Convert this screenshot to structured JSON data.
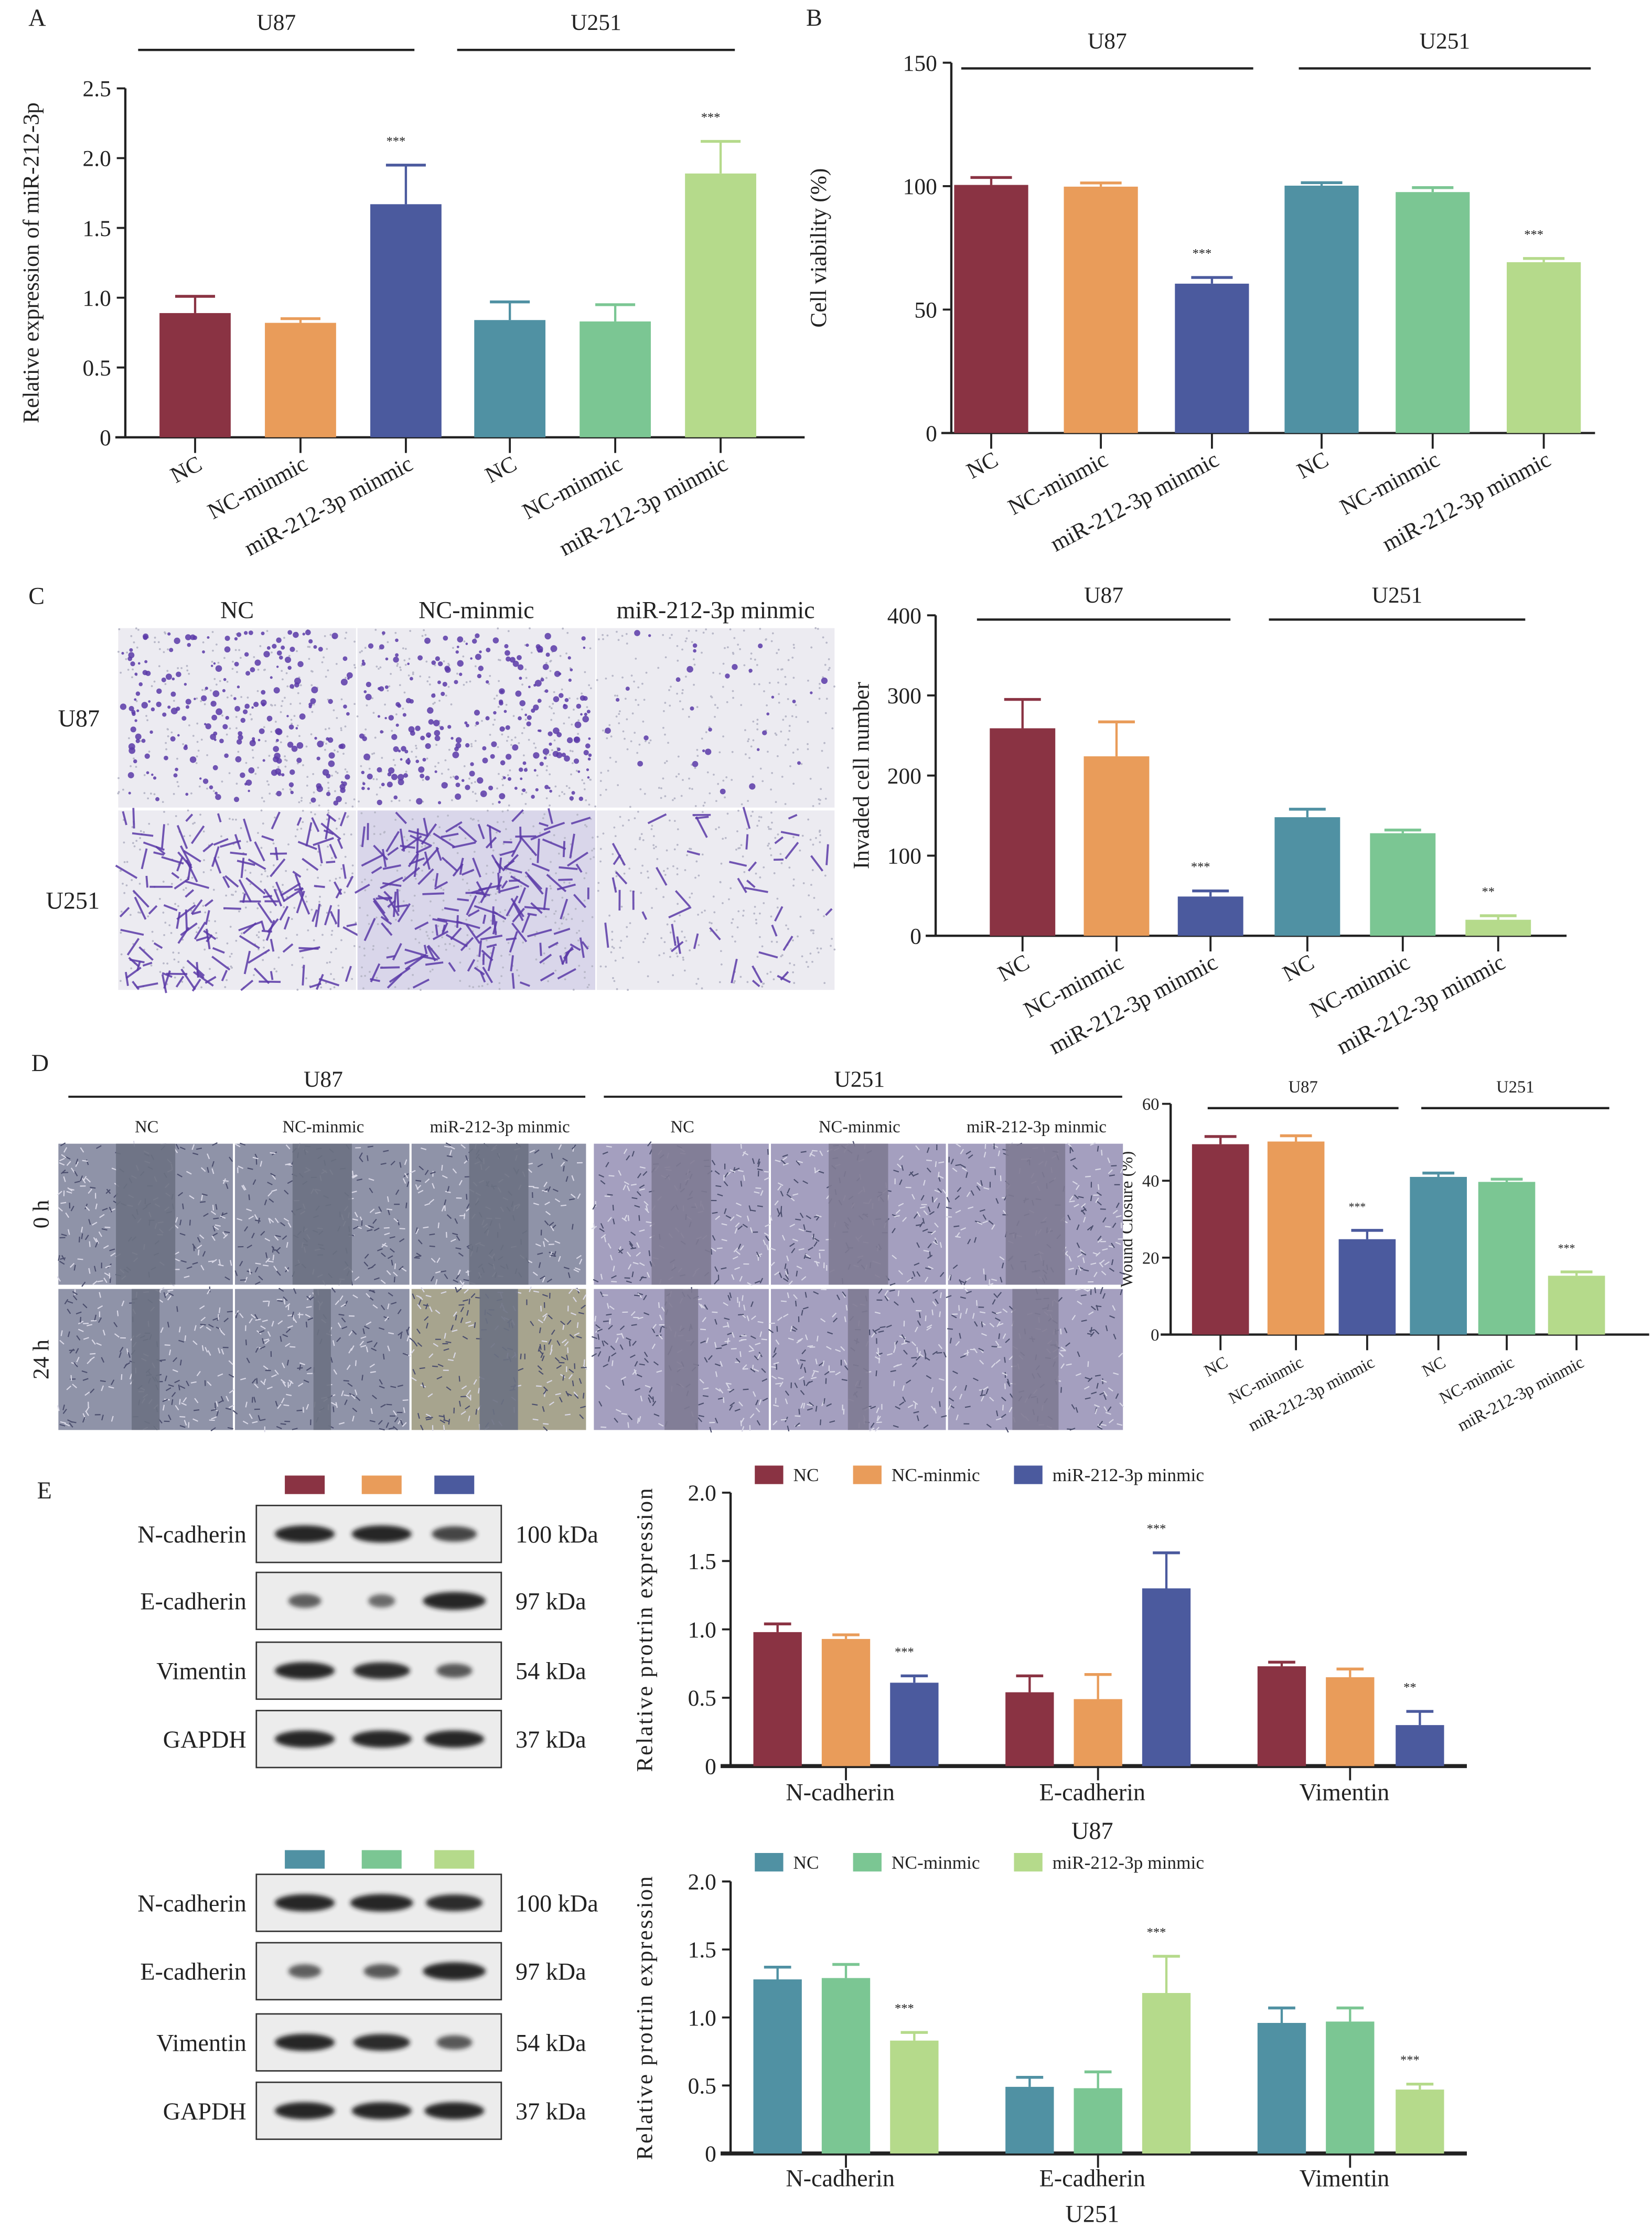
{
  "panel_letters": {
    "a": "A",
    "b": "B",
    "c": "C",
    "d": "D",
    "e": "E"
  },
  "palette": {
    "u87": [
      "#8a3343",
      "#e99c5a",
      "#4b5a9e"
    ],
    "u251": [
      "#5091a3",
      "#7bc693",
      "#b5da8b"
    ]
  },
  "panel_c_images": {
    "columns": [
      "NC",
      "NC-minmic",
      "miR-212-3p minmic"
    ],
    "rows": [
      "U87",
      "U251"
    ]
  },
  "panel_d_images": {
    "groups": [
      "U87",
      "U251"
    ],
    "columns": [
      "NC",
      "NC-minmic",
      "miR-212-3p minmic"
    ],
    "rows": [
      "0 h",
      "24 h"
    ]
  },
  "panel_e_blots": {
    "u87": {
      "markers": [
        {
          "name": "N-cadherin",
          "kda": "100 kDa"
        },
        {
          "name": "E-cadherin",
          "kda": "97 kDa"
        },
        {
          "name": "Vimentin",
          "kda": "54 kDa"
        },
        {
          "name": "GAPDH",
          "kda": "37 kDa"
        }
      ]
    },
    "u251": {
      "markers": [
        {
          "name": "N-cadherin",
          "kda": "100 kDa"
        },
        {
          "name": "E-cadherin",
          "kda": "97 kDa"
        },
        {
          "name": "Vimentin",
          "kda": "54 kDa"
        },
        {
          "name": "GAPDH",
          "kda": "37 kDa"
        }
      ]
    }
  },
  "chart_data": [
    {
      "id": "A",
      "type": "bar",
      "title": "",
      "ylabel": "Relative expression of miR-212-3p",
      "ylim": [
        0,
        2.5
      ],
      "yticks": [
        0,
        0.5,
        1.0,
        1.5,
        2.0,
        2.5
      ],
      "ytick_labels": [
        "0",
        "0.5",
        "1.0",
        "1.5",
        "2.0",
        "2.5"
      ],
      "groups": [
        "U87",
        "U251"
      ],
      "categories": [
        "NC",
        "NC-minmic",
        "miR-212-3p minmic",
        "NC",
        "NC-minmic",
        "miR-212-3p minmic"
      ],
      "values": [
        0.89,
        0.82,
        1.67,
        0.84,
        0.83,
        1.89
      ],
      "errors": [
        0.12,
        0.03,
        0.28,
        0.13,
        0.12,
        0.23
      ],
      "significance": [
        "",
        "",
        "***",
        "",
        "",
        "***"
      ]
    },
    {
      "id": "B",
      "type": "bar",
      "title": "",
      "ylabel": "Cell viability (%)",
      "ylim": [
        0,
        150
      ],
      "yticks": [
        0,
        50,
        100,
        150
      ],
      "ytick_labels": [
        "0",
        "50",
        "100",
        "150"
      ],
      "groups": [
        "U87",
        "U251"
      ],
      "categories": [
        "NC",
        "NC-minmic",
        "miR-212-3p minmic",
        "NC",
        "NC-minmic",
        "miR-212-3p minmic"
      ],
      "values": [
        100.5,
        99.8,
        60.5,
        100.2,
        97.6,
        69.2
      ],
      "errors": [
        3.0,
        1.5,
        2.5,
        1.2,
        1.8,
        1.5
      ],
      "significance": [
        "",
        "",
        "***",
        "",
        "",
        "***"
      ]
    },
    {
      "id": "C",
      "type": "bar",
      "title": "",
      "ylabel": "Invaded cell number",
      "ylim": [
        0,
        400
      ],
      "yticks": [
        0,
        100,
        200,
        300,
        400
      ],
      "ytick_labels": [
        "0",
        "100",
        "200",
        "300",
        "400"
      ],
      "groups": [
        "U87",
        "U251"
      ],
      "categories": [
        "NC",
        "NC-minmic",
        "miR-212-3p minmic",
        "NC",
        "NC-minmic",
        "miR-212-3p minmic"
      ],
      "values": [
        259,
        224,
        49,
        148,
        128,
        20
      ],
      "errors": [
        36,
        43,
        7,
        10,
        4,
        5
      ],
      "significance": [
        "",
        "",
        "***",
        "",
        "",
        "**"
      ]
    },
    {
      "id": "D",
      "type": "bar",
      "title": "",
      "ylabel": "Wound Closure (%)",
      "ylim": [
        0,
        60
      ],
      "yticks": [
        0,
        20,
        40,
        60
      ],
      "ytick_labels": [
        "0",
        "20",
        "40",
        "60"
      ],
      "groups": [
        "U87",
        "U251"
      ],
      "categories": [
        "NC",
        "NC-minmic",
        "miR-212-3p minmic",
        "NC",
        "NC-minmic",
        "miR-212-3p minmic"
      ],
      "values": [
        49.5,
        50.2,
        24.8,
        41.0,
        39.7,
        15.3
      ],
      "errors": [
        2.0,
        1.5,
        2.3,
        1.0,
        0.7,
        1.0
      ],
      "significance": [
        "",
        "",
        "***",
        "",
        "",
        "***"
      ]
    },
    {
      "id": "E-U87",
      "type": "bar",
      "title": "",
      "xlabel": "U87",
      "ylabel": "Relative protrin expression",
      "ylim": [
        0,
        2.0
      ],
      "yticks": [
        0,
        0.5,
        1.0,
        1.5,
        2.0
      ],
      "ytick_labels": [
        "0",
        "0.5",
        "1.0",
        "1.5",
        "2.0"
      ],
      "categories": [
        "N-cadherin",
        "E-cadherin",
        "Vimentin"
      ],
      "legend_position": "top",
      "series": [
        {
          "name": "NC",
          "values": [
            0.98,
            0.54,
            0.73
          ],
          "errors": [
            0.06,
            0.12,
            0.03
          ],
          "significance": [
            "",
            "",
            ""
          ]
        },
        {
          "name": "NC-minmic",
          "values": [
            0.93,
            0.49,
            0.65
          ],
          "errors": [
            0.03,
            0.18,
            0.06
          ],
          "significance": [
            "",
            "",
            ""
          ]
        },
        {
          "name": "miR-212-3p minmic",
          "values": [
            0.61,
            1.3,
            0.3
          ],
          "errors": [
            0.05,
            0.26,
            0.1
          ],
          "significance": [
            "***",
            "***",
            "**"
          ]
        }
      ]
    },
    {
      "id": "E-U251",
      "type": "bar",
      "title": "",
      "xlabel": "U251",
      "ylabel": "Relative protrin expression",
      "ylim": [
        0,
        2.0
      ],
      "yticks": [
        0,
        0.5,
        1.0,
        1.5,
        2.0
      ],
      "ytick_labels": [
        "0",
        "0.5",
        "1.0",
        "1.5",
        "2.0"
      ],
      "categories": [
        "N-cadherin",
        "E-cadherin",
        "Vimentin"
      ],
      "legend_position": "top",
      "series": [
        {
          "name": "NC",
          "values": [
            1.28,
            0.49,
            0.96
          ],
          "errors": [
            0.09,
            0.07,
            0.11
          ],
          "significance": [
            "",
            "",
            ""
          ]
        },
        {
          "name": "NC-minmic",
          "values": [
            1.29,
            0.48,
            0.97
          ],
          "errors": [
            0.1,
            0.12,
            0.1
          ],
          "significance": [
            "",
            "",
            ""
          ]
        },
        {
          "name": "miR-212-3p minmic",
          "values": [
            0.83,
            1.18,
            0.47
          ],
          "errors": [
            0.06,
            0.27,
            0.04
          ],
          "significance": [
            "***",
            "***",
            "***"
          ]
        }
      ]
    }
  ]
}
